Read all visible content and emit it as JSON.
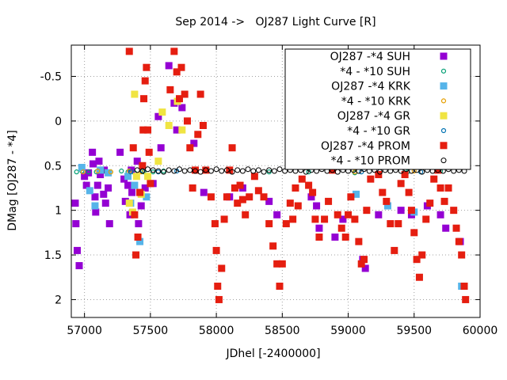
{
  "chart_data": {
    "type": "scatter",
    "title": "Sep 2014 ->   OJ287 Light Curve [R]",
    "xlabel": "JDhel [-2400000]",
    "ylabel": "DMag [OJ287 - *4]",
    "xlim": [
      56900,
      60000
    ],
    "ylim": [
      2.2,
      -0.85
    ],
    "y_inverted": true,
    "grid": true,
    "legend_position": "top-right",
    "x_ticks": [
      "57000",
      "57500",
      "58000",
      "58500",
      "59000",
      "59500",
      "60000"
    ],
    "y_ticks": [
      "-0.5",
      "0",
      "0.5",
      "1",
      "1.5",
      "2"
    ],
    "x_tick_values": [
      57000,
      57500,
      58000,
      58500,
      59000,
      59500,
      60000
    ],
    "y_tick_values": [
      -0.5,
      0,
      0.5,
      1,
      1.5,
      2
    ],
    "series": [
      {
        "name": "OJ287 -*4 SUH",
        "marker": "square",
        "color": "#9400d3",
        "points": [
          [
            56930,
            0.92
          ],
          [
            56935,
            1.15
          ],
          [
            56945,
            1.45
          ],
          [
            56960,
            1.62
          ],
          [
            57000,
            0.62
          ],
          [
            57015,
            0.72
          ],
          [
            57030,
            0.58
          ],
          [
            57060,
            0.35
          ],
          [
            57065,
            0.48
          ],
          [
            57080,
            0.85
          ],
          [
            57085,
            1.02
          ],
          [
            57100,
            0.72
          ],
          [
            57110,
            0.45
          ],
          [
            57120,
            0.6
          ],
          [
            57145,
            0.82
          ],
          [
            57150,
            0.55
          ],
          [
            57160,
            0.92
          ],
          [
            57180,
            0.75
          ],
          [
            57190,
            1.15
          ],
          [
            57270,
            0.35
          ],
          [
            57300,
            0.65
          ],
          [
            57310,
            0.9
          ],
          [
            57330,
            0.72
          ],
          [
            57345,
            1.05
          ],
          [
            57355,
            0.55
          ],
          [
            57360,
            0.8
          ],
          [
            57400,
            0.45
          ],
          [
            57410,
            1.15
          ],
          [
            57430,
            0.95
          ],
          [
            57460,
            0.75
          ],
          [
            57520,
            0.7
          ],
          [
            57560,
            -0.05
          ],
          [
            57580,
            0.3
          ],
          [
            57640,
            -0.62
          ],
          [
            57680,
            -0.2
          ],
          [
            57700,
            0.1
          ],
          [
            57740,
            -0.15
          ],
          [
            57830,
            0.25
          ],
          [
            57905,
            0.8
          ],
          [
            58100,
            0.85
          ],
          [
            58200,
            0.75
          ],
          [
            58400,
            0.9
          ],
          [
            58460,
            1.05
          ],
          [
            58720,
            0.85
          ],
          [
            58760,
            0.95
          ],
          [
            58780,
            1.2
          ],
          [
            58900,
            1.3
          ],
          [
            58960,
            1.1
          ],
          [
            59110,
            1.55
          ],
          [
            59130,
            1.65
          ],
          [
            59230,
            1.05
          ],
          [
            59400,
            1.0
          ],
          [
            59480,
            1.05
          ],
          [
            59600,
            0.95
          ],
          [
            59700,
            1.05
          ],
          [
            59740,
            1.2
          ],
          [
            59850,
            1.35
          ]
        ]
      },
      {
        "name": "*4 - *10 SUH",
        "marker": "circle",
        "color": "#009e73",
        "points": [
          [
            56940,
            0.57
          ],
          [
            56980,
            0.56
          ],
          [
            57030,
            0.57
          ],
          [
            57090,
            0.57
          ],
          [
            57140,
            0.56
          ],
          [
            57190,
            0.57
          ],
          [
            57280,
            0.56
          ],
          [
            57330,
            0.57
          ],
          [
            57380,
            0.58
          ],
          [
            57450,
            0.57
          ],
          [
            57520,
            0.57
          ],
          [
            57600,
            0.56
          ],
          [
            58400,
            0.57
          ],
          [
            58700,
            0.57
          ],
          [
            59050,
            0.58
          ],
          [
            59450,
            0.57
          ],
          [
            59700,
            0.56
          ]
        ]
      },
      {
        "name": "OJ287 -*4 KRK",
        "marker": "square",
        "color": "#56b4e9",
        "points": [
          [
            56980,
            0.52
          ],
          [
            57040,
            0.78
          ],
          [
            57080,
            0.95
          ],
          [
            57120,
            0.55
          ],
          [
            57180,
            0.58
          ],
          [
            57330,
            0.62
          ],
          [
            57350,
            0.92
          ],
          [
            57380,
            0.72
          ],
          [
            57420,
            1.35
          ],
          [
            57470,
            0.85
          ],
          [
            59060,
            0.82
          ],
          [
            59300,
            0.95
          ],
          [
            59500,
            1.02
          ],
          [
            59860,
            1.85
          ]
        ]
      },
      {
        "name": "*4 - *10 KRK",
        "marker": "circle",
        "color": "#e69f00",
        "points": [
          [
            56990,
            0.57
          ],
          [
            57100,
            0.56
          ],
          [
            57200,
            0.57
          ],
          [
            57340,
            0.56
          ],
          [
            57430,
            0.57
          ],
          [
            59050,
            0.57
          ],
          [
            59500,
            0.56
          ]
        ]
      },
      {
        "name": "OJ287 -*4 GR",
        "marker": "square",
        "color": "#f0e442",
        "points": [
          [
            57340,
            0.92
          ],
          [
            57365,
            1.02
          ],
          [
            57380,
            -0.3
          ],
          [
            57395,
            0.62
          ],
          [
            57430,
            0.82
          ],
          [
            57480,
            0.62
          ],
          [
            57560,
            0.45
          ],
          [
            57590,
            -0.1
          ],
          [
            57640,
            0.05
          ],
          [
            57705,
            -0.22
          ],
          [
            57740,
            0.1
          ]
        ]
      },
      {
        "name": "*4 - *10 GR",
        "marker": "circle",
        "color": "#0072b2",
        "points": [
          [
            57350,
            0.57
          ],
          [
            57440,
            0.56
          ],
          [
            57560,
            0.57
          ],
          [
            57700,
            0.56
          ],
          [
            59100,
            0.57
          ],
          [
            59550,
            0.57
          ]
        ]
      },
      {
        "name": "OJ287 -*4 PROM",
        "marker": "square",
        "color": "#e51e10",
        "points": [
          [
            57340,
            -0.78
          ],
          [
            57370,
            0.3
          ],
          [
            57380,
            1.05
          ],
          [
            57390,
            1.5
          ],
          [
            57405,
            1.3
          ],
          [
            57420,
            0.8
          ],
          [
            57440,
            0.5
          ],
          [
            57445,
            0.1
          ],
          [
            57450,
            -0.25
          ],
          [
            57460,
            -0.45
          ],
          [
            57470,
            -0.6
          ],
          [
            57480,
            0.1
          ],
          [
            57490,
            0.35
          ],
          [
            57500,
            0.7
          ],
          [
            57650,
            -0.35
          ],
          [
            57680,
            -0.78
          ],
          [
            57700,
            -0.55
          ],
          [
            57720,
            -0.25
          ],
          [
            57735,
            -0.6
          ],
          [
            57760,
            -0.3
          ],
          [
            57780,
            0.0
          ],
          [
            57800,
            0.3
          ],
          [
            57820,
            0.75
          ],
          [
            57840,
            0.55
          ],
          [
            57860,
            0.15
          ],
          [
            57880,
            -0.3
          ],
          [
            57900,
            0.05
          ],
          [
            57920,
            0.55
          ],
          [
            57960,
            0.85
          ],
          [
            57990,
            1.15
          ],
          [
            58000,
            1.45
          ],
          [
            58010,
            1.85
          ],
          [
            58020,
            2.0
          ],
          [
            58040,
            1.65
          ],
          [
            58060,
            1.1
          ],
          [
            58080,
            0.85
          ],
          [
            58100,
            0.55
          ],
          [
            58120,
            0.3
          ],
          [
            58140,
            0.75
          ],
          [
            58160,
            0.92
          ],
          [
            58180,
            0.72
          ],
          [
            58200,
            0.88
          ],
          [
            58220,
            1.05
          ],
          [
            58250,
            0.85
          ],
          [
            58290,
            0.62
          ],
          [
            58320,
            0.78
          ],
          [
            58360,
            0.85
          ],
          [
            58400,
            1.15
          ],
          [
            58430,
            1.4
          ],
          [
            58460,
            1.6
          ],
          [
            58480,
            1.85
          ],
          [
            58500,
            1.6
          ],
          [
            58530,
            1.15
          ],
          [
            58560,
            0.92
          ],
          [
            58580,
            1.1
          ],
          [
            58600,
            0.75
          ],
          [
            58620,
            0.95
          ],
          [
            58650,
            0.65
          ],
          [
            58700,
            0.72
          ],
          [
            58730,
            0.8
          ],
          [
            58750,
            1.1
          ],
          [
            58780,
            1.3
          ],
          [
            58820,
            1.1
          ],
          [
            58850,
            0.9
          ],
          [
            58880,
            0.55
          ],
          [
            58920,
            1.05
          ],
          [
            58950,
            1.2
          ],
          [
            58980,
            1.3
          ],
          [
            59000,
            1.05
          ],
          [
            59020,
            0.85
          ],
          [
            59050,
            1.1
          ],
          [
            59080,
            1.35
          ],
          [
            59100,
            1.6
          ],
          [
            59120,
            1.55
          ],
          [
            59140,
            1.0
          ],
          [
            59170,
            0.65
          ],
          [
            59200,
            0.5
          ],
          [
            59230,
            0.6
          ],
          [
            59260,
            0.8
          ],
          [
            59290,
            0.9
          ],
          [
            59320,
            1.15
          ],
          [
            59350,
            1.45
          ],
          [
            59380,
            1.15
          ],
          [
            59400,
            0.7
          ],
          [
            59430,
            0.6
          ],
          [
            59460,
            0.8
          ],
          [
            59480,
            1.0
          ],
          [
            59500,
            1.25
          ],
          [
            59520,
            1.55
          ],
          [
            59540,
            1.75
          ],
          [
            59560,
            1.5
          ],
          [
            59590,
            1.1
          ],
          [
            59620,
            0.92
          ],
          [
            59650,
            0.65
          ],
          [
            59680,
            0.55
          ],
          [
            59700,
            0.75
          ],
          [
            59730,
            0.9
          ],
          [
            59760,
            0.75
          ],
          [
            59800,
            1.0
          ],
          [
            59820,
            1.2
          ],
          [
            59840,
            1.35
          ],
          [
            59860,
            1.5
          ],
          [
            59880,
            1.85
          ],
          [
            59890,
            2.0
          ]
        ]
      },
      {
        "name": "*4 - *10 PROM",
        "marker": "circle-open",
        "color": "#000000",
        "points": [
          [
            57400,
            0.55
          ],
          [
            57440,
            0.56
          ],
          [
            57480,
            0.54
          ],
          [
            57520,
            0.55
          ],
          [
            57560,
            0.56
          ],
          [
            57600,
            0.57
          ],
          [
            57640,
            0.55
          ],
          [
            57680,
            0.56
          ],
          [
            57720,
            0.54
          ],
          [
            57760,
            0.56
          ],
          [
            57800,
            0.55
          ],
          [
            57840,
            0.56
          ],
          [
            57880,
            0.57
          ],
          [
            57920,
            0.55
          ],
          [
            57960,
            0.56
          ],
          [
            58000,
            0.54
          ],
          [
            58040,
            0.56
          ],
          [
            58080,
            0.55
          ],
          [
            58120,
            0.57
          ],
          [
            58160,
            0.55
          ],
          [
            58200,
            0.56
          ],
          [
            58240,
            0.54
          ],
          [
            58280,
            0.56
          ],
          [
            58320,
            0.55
          ],
          [
            58360,
            0.57
          ],
          [
            58400,
            0.55
          ],
          [
            58440,
            0.56
          ],
          [
            58480,
            0.54
          ],
          [
            58520,
            0.56
          ],
          [
            58560,
            0.55
          ],
          [
            58600,
            0.56
          ],
          [
            58640,
            0.55
          ],
          [
            58680,
            0.57
          ],
          [
            58720,
            0.55
          ],
          [
            58760,
            0.56
          ],
          [
            58800,
            0.54
          ],
          [
            58840,
            0.56
          ],
          [
            58880,
            0.55
          ],
          [
            58920,
            0.57
          ],
          [
            58960,
            0.55
          ],
          [
            59000,
            0.56
          ],
          [
            59040,
            0.55
          ],
          [
            59080,
            0.56
          ],
          [
            59120,
            0.54
          ],
          [
            59160,
            0.56
          ],
          [
            59200,
            0.55
          ],
          [
            59240,
            0.57
          ],
          [
            59280,
            0.55
          ],
          [
            59320,
            0.56
          ],
          [
            59360,
            0.55
          ],
          [
            59400,
            0.56
          ],
          [
            59440,
            0.54
          ],
          [
            59480,
            0.56
          ],
          [
            59520,
            0.55
          ],
          [
            59560,
            0.57
          ],
          [
            59600,
            0.55
          ],
          [
            59640,
            0.56
          ],
          [
            59680,
            0.55
          ],
          [
            59720,
            0.56
          ],
          [
            59760,
            0.54
          ],
          [
            59800,
            0.56
          ],
          [
            59840,
            0.55
          ],
          [
            59880,
            0.56
          ]
        ]
      }
    ]
  }
}
